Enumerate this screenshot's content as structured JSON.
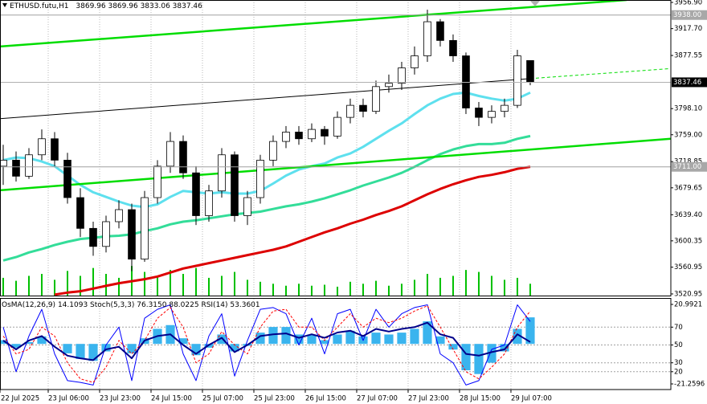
{
  "chart_data": [
    {
      "type": "candlestick",
      "symbol": "ETHUSD.futu,H1",
      "open": [
        3712,
        3721,
        3697,
        3729,
        3753,
        3721,
        3665,
        3619,
        3592,
        3629,
        3647,
        3573,
        3665,
        3712,
        3749,
        3702,
        3638,
        3675,
        3729,
        3638,
        3665,
        3721,
        3749,
        3763,
        3753,
        3767,
        3757,
        3785,
        3803,
        3794,
        3831,
        3836,
        3859,
        3877,
        3928,
        3900,
        3877,
        3799,
        3785,
        3794,
        3803,
        3869.96
      ],
      "high": [
        3744,
        3734,
        3739,
        3767,
        3763,
        3732,
        3679,
        3629,
        3638,
        3661,
        3656,
        3675,
        3721,
        3763,
        3758,
        3712,
        3684,
        3739,
        3734,
        3675,
        3729,
        3758,
        3772,
        3772,
        3776,
        3772,
        3794,
        3813,
        3813,
        3840,
        3849,
        3868,
        3891,
        3946,
        3932,
        3909,
        3882,
        3808,
        3803,
        3813,
        3886,
        3869.96
      ],
      "low": [
        3684,
        3689,
        3693,
        3721,
        3712,
        3656,
        3606,
        3578,
        3583,
        3619,
        3555,
        3569,
        3656,
        3702,
        3693,
        3624,
        3629,
        3665,
        3629,
        3624,
        3656,
        3712,
        3739,
        3744,
        3748,
        3744,
        3753,
        3776,
        3785,
        3790,
        3822,
        3826,
        3849,
        3868,
        3891,
        3868,
        3790,
        3772,
        3776,
        3785,
        3799,
        3833.06
      ],
      "close": [
        3721,
        3697,
        3729,
        3753,
        3721,
        3665,
        3619,
        3592,
        3629,
        3647,
        3573,
        3665,
        3712,
        3749,
        3702,
        3638,
        3675,
        3729,
        3638,
        3665,
        3721,
        3749,
        3763,
        3753,
        3767,
        3757,
        3785,
        3803,
        3794,
        3831,
        3836,
        3859,
        3877,
        3928,
        3900,
        3877,
        3799,
        3785,
        3794,
        3803,
        3877,
        3837.46
      ],
      "volumes": [
        18,
        15,
        20,
        22,
        16,
        25,
        20,
        28,
        22,
        18,
        30,
        24,
        20,
        26,
        22,
        28,
        18,
        20,
        24,
        16,
        14,
        12,
        10,
        12,
        10,
        11,
        9,
        14,
        12,
        15,
        10,
        12,
        16,
        22,
        18,
        20,
        26,
        24,
        20,
        16,
        18,
        12
      ],
      "volume_lim": [
        0,
        300
      ],
      "volume_color": "#00c000",
      "up_color": "#ffffff",
      "down_color": "#000000",
      "series": [
        {
          "color": "#5ee0ee",
          "values": [
            3721,
            3725,
            3724,
            3719,
            3712,
            3698,
            3684,
            3673,
            3666,
            3659,
            3653,
            3651,
            3655,
            3666,
            3675,
            3673,
            3671,
            3673,
            3671,
            3671,
            3675,
            3686,
            3698,
            3707,
            3712,
            3716,
            3725,
            3731,
            3741,
            3753,
            3765,
            3776,
            3790,
            3803,
            3813,
            3820,
            3822,
            3817,
            3813,
            3810,
            3813,
            3822
          ]
        },
        {
          "color": "#33dd99",
          "values": [
            3571,
            3576,
            3583,
            3588,
            3594,
            3599,
            3603,
            3605,
            3607,
            3608,
            3610,
            3615,
            3619,
            3625,
            3629,
            3631,
            3634,
            3637,
            3640,
            3642,
            3644,
            3648,
            3652,
            3655,
            3659,
            3664,
            3670,
            3676,
            3683,
            3689,
            3695,
            3702,
            3711,
            3721,
            3730,
            3737,
            3742,
            3745,
            3745,
            3747,
            3753,
            3757
          ]
        },
        {
          "color": "#dd0000",
          "values": [
            null,
            null,
            null,
            null,
            3520,
            3523,
            3525,
            3529,
            3533,
            3537,
            3540,
            3543,
            3547,
            3553,
            3559,
            3563,
            3567,
            3571,
            3575,
            3579,
            3583,
            3587,
            3592,
            3599,
            3606,
            3613,
            3619,
            3626,
            3632,
            3639,
            3645,
            3652,
            3661,
            3670,
            3678,
            3685,
            3691,
            3696,
            3699,
            3703,
            3708,
            3711
          ]
        }
      ],
      "trendlines": [
        {
          "color": "#00dd00",
          "x": [
            -0.25,
            48.5
          ],
          "values": [
            3891,
            3960.5
          ],
          "style": "solid"
        },
        {
          "color": "#00dd00",
          "x": [
            -0.25,
            51.94
          ],
          "values": [
            3676,
            3753
          ],
          "style": "solid"
        },
        {
          "color": "#000000",
          "x": [
            -0.25,
            41
          ],
          "values": [
            3783,
            3843
          ],
          "style": "solid"
        },
        {
          "color": "#00dd00",
          "x": [
            41,
            51.94
          ],
          "values": [
            3843,
            3858
          ],
          "style": "dashed"
        }
      ],
      "levels": [
        {
          "value": 3938,
          "label": "3938.00"
        },
        {
          "value": 3711,
          "label": "3711.00"
        }
      ],
      "xlim": [
        -0.25,
        51.94
      ],
      "xticks": [
        {
          "value": -0.25,
          "label": "22 Jul 2025"
        },
        {
          "value": 3.5,
          "label": "23 Jul 06:00"
        },
        {
          "value": 7.5,
          "label": "23 Jul 23:00"
        },
        {
          "value": 11.5,
          "label": "24 Jul 15:00"
        },
        {
          "value": 15.5,
          "label": "25 Jul 07:00"
        },
        {
          "value": 19.5,
          "label": "25 Jul 23:00"
        },
        {
          "value": 23.5,
          "label": "26 Jul 15:00"
        },
        {
          "value": 27.5,
          "label": "27 Jul 07:00"
        },
        {
          "value": 31.5,
          "label": "27 Jul 23:00"
        },
        {
          "value": 35.5,
          "label": "28 Jul 15:00"
        },
        {
          "value": 39.5,
          "label": "29 Jul 07:00"
        }
      ],
      "ylim": [
        3518.5,
        3960.5
      ],
      "yticks": [
        {
          "value": 3956.9,
          "label": "3956.90"
        },
        {
          "value": 3917.7,
          "label": "3917.70"
        },
        {
          "value": 3877.55,
          "label": "3877.55"
        },
        {
          "value": 3798.1,
          "label": "3798.10"
        },
        {
          "value": 3759,
          "label": "3759.00"
        },
        {
          "value": 3718.85,
          "label": "3718.85"
        },
        {
          "value": 3679.65,
          "label": "3679.65"
        },
        {
          "value": 3639.4,
          "label": "3639.40"
        },
        {
          "value": 3600.35,
          "label": "3600.35"
        },
        {
          "value": 3560.95,
          "label": "3560.95"
        },
        {
          "value": 3520.95,
          "label": "3520.95"
        }
      ]
    },
    {
      "type": "oscillator",
      "series": [
        {
          "name": "OsMA(12,26,9)",
          "kind": "histogram",
          "axis": "y2",
          "color": "#3ab4ee",
          "values": [
            2,
            -2,
            1,
            4,
            0,
            -5,
            -8,
            -9,
            -4,
            0,
            -5,
            3,
            8,
            10,
            3,
            -6,
            -2,
            5,
            -4,
            -1,
            6,
            9,
            9,
            5,
            5,
            2,
            5,
            7,
            4,
            6,
            5,
            6,
            8,
            12,
            4,
            -3,
            -14,
            -16,
            -10,
            -4,
            8,
            14.1093
          ]
        },
        {
          "name": "Stoch(5,3,3)",
          "kind": "line",
          "color": "#0000ff",
          "style": "solid",
          "width": 1,
          "last_label": "76.3150",
          "values": [
            70,
            20,
            60,
            90,
            40,
            10,
            8,
            5,
            50,
            70,
            10,
            80,
            90,
            95,
            40,
            10,
            60,
            85,
            15,
            55,
            90,
            92,
            85,
            50,
            80,
            40,
            85,
            90,
            55,
            90,
            70,
            85,
            92,
            95,
            40,
            30,
            5,
            10,
            45,
            50,
            95,
            76.315
          ]
        },
        {
          "kind": "line",
          "color": "#ff0000",
          "style": "dashed",
          "width": 1,
          "values": [
            60,
            40,
            45,
            70,
            60,
            30,
            12,
            8,
            25,
            55,
            40,
            55,
            80,
            92,
            70,
            30,
            40,
            65,
            50,
            40,
            70,
            88,
            90,
            70,
            70,
            55,
            70,
            85,
            70,
            80,
            75,
            80,
            88,
            94,
            70,
            45,
            20,
            12,
            25,
            40,
            70,
            88.0225
          ]
        },
        {
          "name": "RSI(14)",
          "kind": "line",
          "color": "#00008b",
          "style": "solid",
          "width": 2,
          "values": [
            55,
            45,
            55,
            60,
            48,
            38,
            35,
            33,
            45,
            48,
            35,
            55,
            60,
            62,
            50,
            40,
            50,
            58,
            42,
            50,
            60,
            62,
            63,
            58,
            62,
            58,
            64,
            66,
            60,
            68,
            65,
            68,
            70,
            75,
            62,
            58,
            40,
            38,
            42,
            45,
            62,
            53.3601
          ]
        }
      ],
      "ylim": [
        0,
        101.8
      ],
      "yticks": [
        70,
        50,
        30,
        20
      ],
      "y2lim": [
        -24.25,
        23.98
      ],
      "y2ticks": [
        20.9921,
        -21.2596
      ]
    }
  ]
}
